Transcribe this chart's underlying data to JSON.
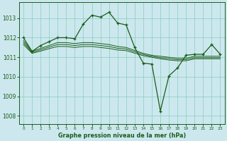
{
  "bg_color": "#cce8ee",
  "grid_color": "#88ccbb",
  "line_color": "#1a5c1a",
  "title": "Graphe pression niveau de la mer (hPa)",
  "xlim": [
    -0.5,
    23.5
  ],
  "ylim": [
    1007.6,
    1013.8
  ],
  "yticks": [
    1008,
    1009,
    1010,
    1011,
    1012,
    1013
  ],
  "xticks": [
    0,
    1,
    2,
    3,
    4,
    5,
    6,
    7,
    8,
    9,
    10,
    11,
    12,
    13,
    14,
    15,
    16,
    17,
    18,
    19,
    20,
    21,
    22,
    23
  ],
  "series_main": {
    "x": [
      0,
      1,
      2,
      3,
      4,
      5,
      6,
      7,
      8,
      9,
      10,
      11,
      12,
      13,
      14,
      15,
      16,
      17,
      18,
      19,
      20,
      21,
      22,
      23
    ],
    "y": [
      1012.0,
      1011.3,
      1011.6,
      1011.8,
      1012.0,
      1012.0,
      1011.95,
      1012.7,
      1013.15,
      1013.05,
      1013.3,
      1012.75,
      1012.65,
      1011.5,
      1010.7,
      1010.65,
      1008.25,
      1010.05,
      1010.45,
      1011.1,
      1011.15,
      1011.15,
      1011.65,
      1011.15
    ]
  },
  "series_flat1": {
    "x": [
      0,
      1,
      2,
      3,
      4,
      5,
      6,
      7,
      8,
      9,
      10,
      11,
      12,
      13,
      14,
      15,
      16,
      17,
      18,
      19,
      20,
      21,
      22,
      23
    ],
    "y": [
      1011.85,
      1011.3,
      1011.45,
      1011.6,
      1011.75,
      1011.75,
      1011.7,
      1011.75,
      1011.75,
      1011.7,
      1011.65,
      1011.55,
      1011.5,
      1011.35,
      1011.2,
      1011.1,
      1011.05,
      1011.0,
      1010.95,
      1010.95,
      1011.05,
      1011.05,
      1011.05,
      1011.05
    ]
  },
  "series_flat2": {
    "x": [
      0,
      1,
      2,
      3,
      4,
      5,
      6,
      7,
      8,
      9,
      10,
      11,
      12,
      13,
      14,
      15,
      16,
      17,
      18,
      19,
      20,
      21,
      22,
      23
    ],
    "y": [
      1011.75,
      1011.25,
      1011.38,
      1011.52,
      1011.65,
      1011.65,
      1011.6,
      1011.65,
      1011.65,
      1011.6,
      1011.55,
      1011.46,
      1011.42,
      1011.28,
      1011.14,
      1011.05,
      1010.98,
      1010.93,
      1010.88,
      1010.88,
      1010.98,
      1010.98,
      1010.98,
      1010.98
    ]
  },
  "series_flat3": {
    "x": [
      0,
      1,
      2,
      3,
      4,
      5,
      6,
      7,
      8,
      9,
      10,
      11,
      12,
      13,
      14,
      15,
      16,
      17,
      18,
      19,
      20,
      21,
      22,
      23
    ],
    "y": [
      1011.65,
      1011.2,
      1011.31,
      1011.44,
      1011.55,
      1011.55,
      1011.5,
      1011.55,
      1011.55,
      1011.5,
      1011.45,
      1011.37,
      1011.34,
      1011.21,
      1011.08,
      1011.0,
      1010.92,
      1010.86,
      1010.82,
      1010.82,
      1010.92,
      1010.92,
      1010.92,
      1010.92
    ]
  }
}
